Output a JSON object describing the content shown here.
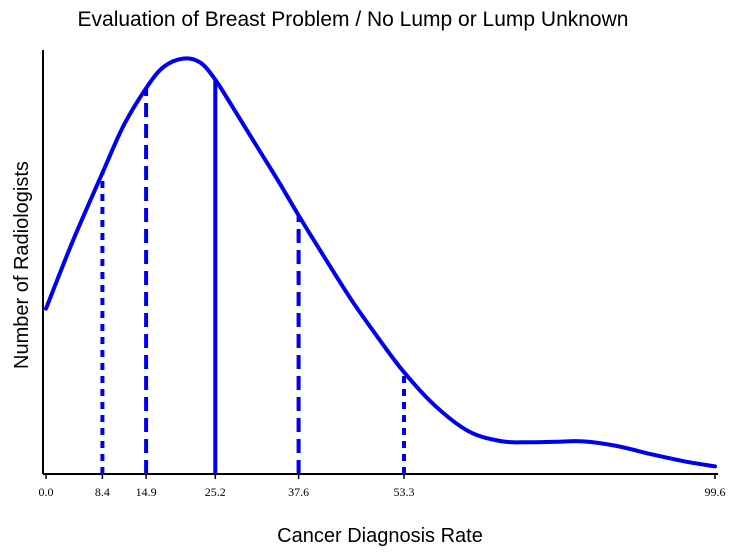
{
  "chart_data": {
    "type": "line",
    "title": "Evaluation of Breast Problem / No Lump or Lump Unknown",
    "xlabel": "Cancer Diagnosis Rate",
    "ylabel": "Number of Radiologists",
    "xlim": [
      0.0,
      99.6
    ],
    "x_tick_labels": [
      "0.0",
      "8.4",
      "14.9",
      "25.2",
      "37.6",
      "53.3",
      "99.6"
    ],
    "line_color": "#0000ee",
    "y_axis_ticks": false,
    "grid": false,
    "legend": "none",
    "series": [
      {
        "x": [
          0.0,
          4.0,
          8.4,
          11.5,
          14.9,
          17.5,
          20.5,
          23.0,
          25.2,
          28.0,
          31.5,
          35.0,
          37.6,
          41.5,
          45.5,
          49.5,
          53.3,
          58.0,
          63.0,
          68.0,
          72.0,
          76.0,
          80.0,
          85.0,
          90.0,
          95.0,
          99.6
        ],
        "y": [
          0.39,
          0.55,
          0.71,
          0.82,
          0.91,
          0.96,
          0.98,
          0.97,
          0.93,
          0.86,
          0.77,
          0.68,
          0.61,
          0.51,
          0.41,
          0.32,
          0.24,
          0.16,
          0.1,
          0.077,
          0.075,
          0.076,
          0.077,
          0.066,
          0.047,
          0.03,
          0.018
        ]
      }
    ],
    "percentile_lines": [
      {
        "x": 8.4,
        "label": "8.4",
        "style": "dotted",
        "y": 0.71
      },
      {
        "x": 14.9,
        "label": "14.9",
        "style": "dashed",
        "y": 0.91
      },
      {
        "x": 25.2,
        "label": "25.2",
        "style": "solid",
        "y": 0.93
      },
      {
        "x": 37.6,
        "label": "37.6",
        "style": "dashed",
        "y": 0.61
      },
      {
        "x": 53.3,
        "label": "53.3",
        "style": "dotted",
        "y": 0.24
      }
    ]
  }
}
